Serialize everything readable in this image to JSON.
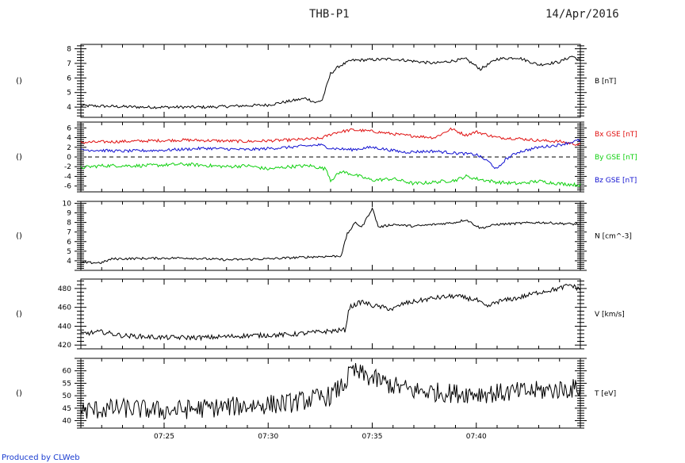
{
  "header": {
    "title": "THB-P1",
    "date": "14/Apr/2016"
  },
  "footer": "Produced by CLWeb",
  "colors": {
    "black": "#000000",
    "red": "#e01010",
    "green": "#10d010",
    "blue": "#1010d0"
  },
  "chart_data": [
    {
      "type": "line",
      "panel": "B",
      "left_label": "()",
      "series_labels": [
        {
          "text": "B [nT]",
          "color": "#000000"
        }
      ],
      "ylim": [
        3.3,
        8.3
      ],
      "yticks": [
        "4",
        "5",
        "6",
        "7",
        "8"
      ],
      "ytick_values": [
        4,
        5,
        6,
        7,
        8
      ],
      "series": [
        {
          "name": "B [nT]",
          "color": "#000000",
          "knots": [
            [
              0,
              4.1
            ],
            [
              3,
              4.0
            ],
            [
              6,
              4.0
            ],
            [
              9,
              4.15
            ],
            [
              10.8,
              4.6
            ],
            [
              11,
              4.5
            ],
            [
              11.3,
              4.3
            ],
            [
              11.6,
              4.5
            ],
            [
              11.8,
              5.4
            ],
            [
              12,
              6.3
            ],
            [
              12.4,
              6.8
            ],
            [
              13,
              7.2
            ],
            [
              15,
              7.3
            ],
            [
              17,
              7.0
            ],
            [
              18.5,
              7.3
            ],
            [
              19.2,
              6.6
            ],
            [
              20,
              7.3
            ],
            [
              21,
              7.4
            ],
            [
              22,
              6.9
            ],
            [
              23,
              7.1
            ],
            [
              23.6,
              7.5
            ],
            [
              24,
              7.2
            ]
          ],
          "noise": 0.1
        }
      ]
    },
    {
      "type": "line",
      "panel": "Bxyz",
      "left_label": "()",
      "series_labels": [
        {
          "text": "Bx GSE [nT]",
          "color": "#e01010"
        },
        {
          "text": "By GSE [nT]",
          "color": "#10d010"
        },
        {
          "text": "Bz GSE [nT]",
          "color": "#1010d0"
        }
      ],
      "ylim": [
        -7.2,
        7.2
      ],
      "yticks": [
        "-6",
        "-4",
        "-2",
        "0",
        "2",
        "4",
        "6"
      ],
      "ytick_values": [
        -6,
        -4,
        -2,
        0,
        2,
        4,
        6
      ],
      "zero_line": true,
      "series": [
        {
          "name": "Bx GSE [nT]",
          "color": "#e01010",
          "knots": [
            [
              0,
              3.0
            ],
            [
              2,
              3.2
            ],
            [
              5,
              3.5
            ],
            [
              8,
              3.2
            ],
            [
              10,
              3.5
            ],
            [
              11.5,
              3.8
            ],
            [
              12.2,
              5.0
            ],
            [
              13,
              5.6
            ],
            [
              14,
              5.3
            ],
            [
              15.5,
              4.5
            ],
            [
              17,
              4.0
            ],
            [
              17.8,
              5.8
            ],
            [
              18.5,
              4.5
            ],
            [
              19,
              5.2
            ],
            [
              20,
              4.0
            ],
            [
              21,
              3.8
            ],
            [
              22,
              3.4
            ],
            [
              23,
              3.2
            ],
            [
              24,
              2.5
            ]
          ],
          "noise": 0.3
        },
        {
          "name": "By GSE [nT]",
          "color": "#10d010",
          "knots": [
            [
              0,
              -2.2
            ],
            [
              1,
              -1.8
            ],
            [
              3,
              -1.8
            ],
            [
              5,
              -1.5
            ],
            [
              7,
              -2.0
            ],
            [
              8,
              -1.8
            ],
            [
              9,
              -2.5
            ],
            [
              10,
              -2.0
            ],
            [
              11,
              -1.8
            ],
            [
              11.8,
              -2.5
            ],
            [
              12,
              -4.8
            ],
            [
              12.5,
              -3.0
            ],
            [
              13,
              -3.5
            ],
            [
              14,
              -4.8
            ],
            [
              15,
              -4.5
            ],
            [
              16,
              -5.5
            ],
            [
              17,
              -5.2
            ],
            [
              18,
              -4.8
            ],
            [
              18.5,
              -4.0
            ],
            [
              19,
              -4.5
            ],
            [
              20,
              -5.2
            ],
            [
              21,
              -5.5
            ],
            [
              22,
              -5.0
            ],
            [
              23,
              -5.5
            ],
            [
              24,
              -5.8
            ]
          ],
          "noise": 0.35
        },
        {
          "name": "Bz GSE [nT]",
          "color": "#1010d0",
          "knots": [
            [
              0,
              1.5
            ],
            [
              2,
              1.2
            ],
            [
              4,
              1.4
            ],
            [
              6,
              1.8
            ],
            [
              8,
              1.5
            ],
            [
              10,
              2.0
            ],
            [
              11.5,
              2.5
            ],
            [
              12,
              1.8
            ],
            [
              13,
              1.5
            ],
            [
              14,
              2.0
            ],
            [
              15.5,
              1.0
            ],
            [
              17,
              1.2
            ],
            [
              18,
              0.8
            ],
            [
              19,
              0.5
            ],
            [
              19.6,
              -1.0
            ],
            [
              20,
              -2.6
            ],
            [
              20.4,
              -0.5
            ],
            [
              21,
              1.0
            ],
            [
              22,
              2.0
            ],
            [
              23,
              2.5
            ],
            [
              24,
              3.5
            ]
          ],
          "noise": 0.3
        }
      ]
    },
    {
      "type": "line",
      "panel": "N",
      "left_label": "()",
      "series_labels": [
        {
          "text": "N [cm^-3]",
          "color": "#000000"
        }
      ],
      "ylim": [
        3.0,
        10.2
      ],
      "yticks": [
        "4",
        "5",
        "6",
        "7",
        "8",
        "9",
        "10"
      ],
      "ytick_values": [
        4,
        5,
        6,
        7,
        8,
        9,
        10
      ],
      "series": [
        {
          "name": "N [cm^-3]",
          "color": "#000000",
          "knots": [
            [
              0,
              3.8
            ],
            [
              1,
              3.8
            ],
            [
              1.5,
              4.2
            ],
            [
              5,
              4.3
            ],
            [
              7,
              4.1
            ],
            [
              9,
              4.2
            ],
            [
              11,
              4.4
            ],
            [
              12.5,
              4.5
            ],
            [
              12.8,
              6.8
            ],
            [
              13.2,
              8.0
            ],
            [
              13.5,
              7.5
            ],
            [
              14,
              9.5
            ],
            [
              14.3,
              7.5
            ],
            [
              15,
              7.8
            ],
            [
              16,
              7.6
            ],
            [
              18,
              8.0
            ],
            [
              18.5,
              8.3
            ],
            [
              19.2,
              7.4
            ],
            [
              20,
              7.8
            ],
            [
              22,
              8.0
            ],
            [
              24,
              7.8
            ]
          ],
          "noise": 0.12
        }
      ]
    },
    {
      "type": "line",
      "panel": "V",
      "left_label": "()",
      "series_labels": [
        {
          "text": "V [km/s]",
          "color": "#000000"
        }
      ],
      "ylim": [
        416,
        490
      ],
      "yticks": [
        "420",
        "440",
        "460",
        "480"
      ],
      "ytick_values": [
        420,
        440,
        460,
        480
      ],
      "series": [
        {
          "name": "V [km/s]",
          "color": "#000000",
          "knots": [
            [
              0,
              432
            ],
            [
              1,
              434
            ],
            [
              2,
              430
            ],
            [
              4,
              428
            ],
            [
              6,
              428
            ],
            [
              8,
              430
            ],
            [
              10,
              431
            ],
            [
              11.5,
              434
            ],
            [
              12.7,
              436
            ],
            [
              12.9,
              460
            ],
            [
              13.5,
              466
            ],
            [
              14,
              462
            ],
            [
              15,
              458
            ],
            [
              15.5,
              464
            ],
            [
              17,
              470
            ],
            [
              18,
              472
            ],
            [
              19,
              468
            ],
            [
              19.5,
              460
            ],
            [
              20,
              466
            ],
            [
              21,
              470
            ],
            [
              22,
              476
            ],
            [
              23,
              480
            ],
            [
              23.5,
              484
            ],
            [
              24,
              479
            ]
          ],
          "noise": 2.5
        }
      ]
    },
    {
      "type": "line",
      "panel": "T",
      "left_label": "()",
      "series_labels": [
        {
          "text": "T [eV]",
          "color": "#000000"
        }
      ],
      "ylim": [
        37,
        65
      ],
      "yticks": [
        "40",
        "45",
        "50",
        "55",
        "60"
      ],
      "ytick_values": [
        40,
        45,
        50,
        55,
        60
      ],
      "series": [
        {
          "name": "T [eV]",
          "color": "#000000",
          "knots": [
            [
              0,
              44
            ],
            [
              2,
              45
            ],
            [
              4,
              44
            ],
            [
              6,
              45
            ],
            [
              8,
              46
            ],
            [
              10,
              47
            ],
            [
              12,
              50
            ],
            [
              12.7,
              55
            ],
            [
              13,
              60
            ],
            [
              14,
              57
            ],
            [
              15,
              54
            ],
            [
              16,
              52
            ],
            [
              18,
              51
            ],
            [
              20,
              51
            ],
            [
              22,
              52
            ],
            [
              24,
              53
            ]
          ],
          "noise": 4.0
        }
      ]
    }
  ],
  "x_axis": {
    "start_minute": 0,
    "end_minute": 24,
    "tick_labels": [
      "07:25",
      "07:30",
      "07:35",
      "07:40"
    ],
    "tick_values": [
      4,
      9,
      14,
      19
    ]
  }
}
